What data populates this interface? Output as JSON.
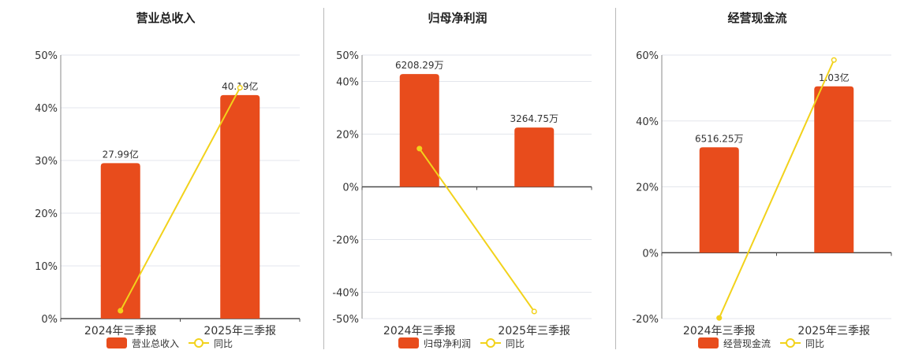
{
  "colors": {
    "bar": "#e84c1c",
    "line": "#f2d21b",
    "axis": "#4a4a4a",
    "grid": "#e3e6ec",
    "text": "#333333",
    "title": "#222222"
  },
  "chart_data": [
    {
      "type": "bar",
      "title": "营业总收入",
      "categories": [
        "2024年三季报",
        "2025年三季报"
      ],
      "yticks": [
        "0%",
        "10%",
        "20%",
        "30%",
        "40%",
        "50%"
      ],
      "ylim": [
        0,
        50
      ],
      "series": [
        {
          "name": "营业总收入",
          "type": "bar",
          "values": [
            29.5,
            42.4
          ],
          "labels": [
            "27.99亿",
            "40.19亿"
          ]
        },
        {
          "name": "同比",
          "type": "line",
          "values": [
            1.5,
            43.8
          ]
        }
      ],
      "legend": "bottom"
    },
    {
      "type": "bar",
      "title": "归母净利润",
      "categories": [
        "2024年三季报",
        "2025年三季报"
      ],
      "yticks": [
        "-50%",
        "-40%",
        "-20%",
        "0%",
        "20%",
        "40%",
        "50%"
      ],
      "ylim": [
        -50,
        50
      ],
      "series": [
        {
          "name": "归母净利润",
          "type": "bar",
          "values": [
            42.8,
            22.5
          ],
          "labels": [
            "6208.29万",
            "3264.75万"
          ]
        },
        {
          "name": "同比",
          "type": "line",
          "values": [
            14.5,
            -47.3
          ]
        }
      ],
      "legend": "bottom"
    },
    {
      "type": "bar",
      "title": "经营现金流",
      "categories": [
        "2024年三季报",
        "2025年三季报"
      ],
      "yticks": [
        "-20%",
        "0%",
        "20%",
        "40%",
        "60%"
      ],
      "ylim": [
        -20,
        60
      ],
      "series": [
        {
          "name": "经营现金流",
          "type": "bar",
          "values": [
            32.0,
            50.5
          ],
          "labels": [
            "6516.25万",
            "1.03亿"
          ]
        },
        {
          "name": "同比",
          "type": "line",
          "values": [
            -19.8,
            58.5
          ]
        }
      ],
      "legend": "bottom"
    }
  ]
}
